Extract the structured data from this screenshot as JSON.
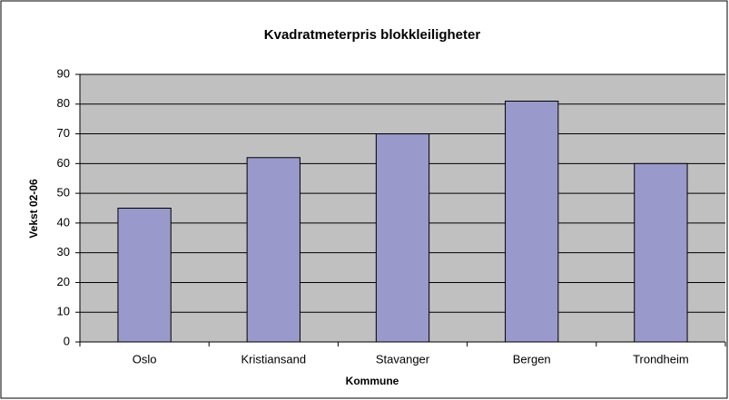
{
  "chart_data": {
    "type": "bar",
    "title": "Kvadratmeterpris blokkleiligheter",
    "x_label": "Kommune",
    "y_label": "Vekst 02-06",
    "categories": [
      "Oslo",
      "Kristiansand",
      "Stavanger",
      "Bergen",
      "Trondheim"
    ],
    "values": [
      45,
      62,
      70,
      81,
      60
    ],
    "color": "#9999cc",
    "ylim": [
      0,
      90
    ],
    "yticks": [
      0,
      10,
      20,
      30,
      40,
      50,
      60,
      70,
      80,
      90
    ],
    "grid": true
  }
}
